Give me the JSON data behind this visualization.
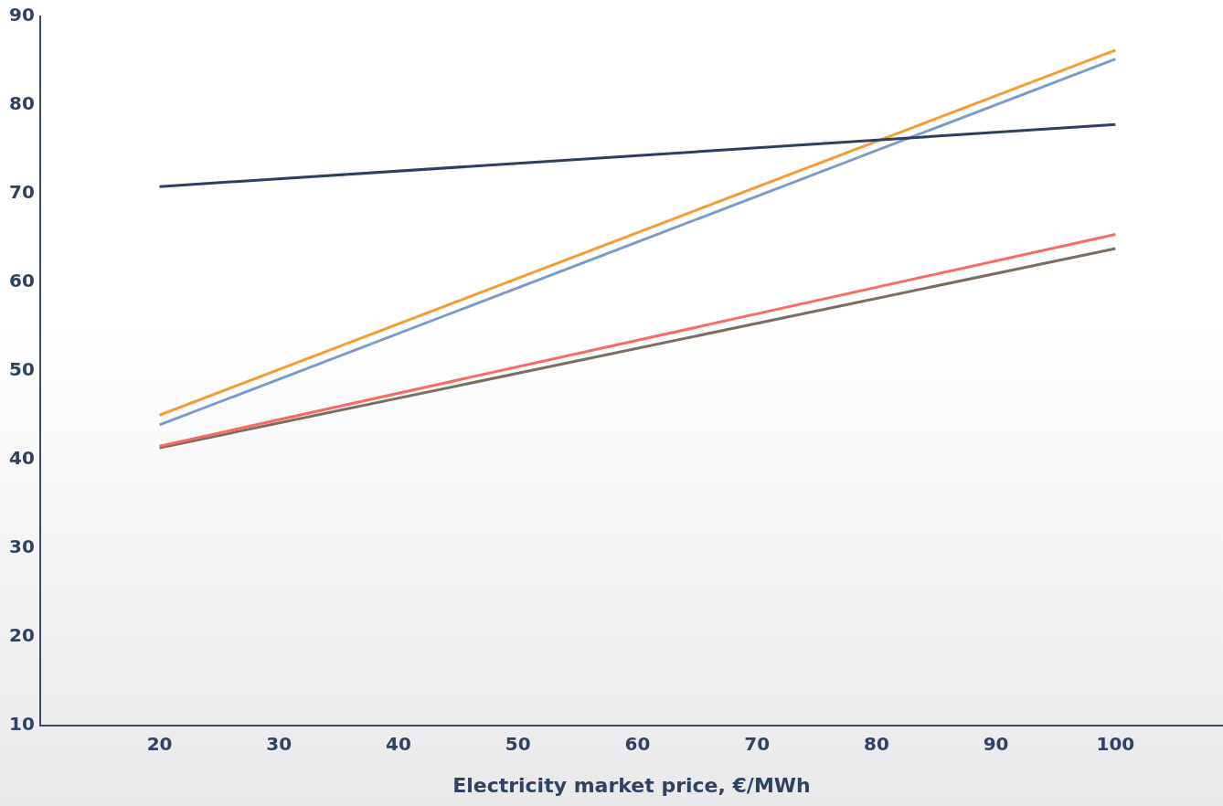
{
  "chart_data": {
    "type": "line",
    "xlabel": "Electricity market price, €/MWh",
    "x": [
      20,
      100
    ],
    "xlim": [
      10,
      109
    ],
    "xticks": [
      20,
      30,
      40,
      50,
      60,
      70,
      80,
      90,
      100
    ],
    "ylim": [
      10,
      90
    ],
    "yticks": [
      10,
      20,
      30,
      40,
      50,
      60,
      70,
      80,
      90
    ],
    "grid": false,
    "legend": false,
    "marker": "none",
    "line_style": "solid",
    "series": [
      {
        "color": "#2e3f63",
        "values": [
          70.8,
          77.8
        ]
      },
      {
        "color": "#f79b35",
        "values": [
          45,
          86.2
        ]
      },
      {
        "color": "#7b9ccb",
        "values": [
          43.9,
          85.2
        ]
      },
      {
        "color": "#f76b62",
        "values": [
          41.5,
          65.4
        ]
      },
      {
        "color": "#7a6d62",
        "values": [
          41.3,
          63.8
        ]
      }
    ]
  }
}
